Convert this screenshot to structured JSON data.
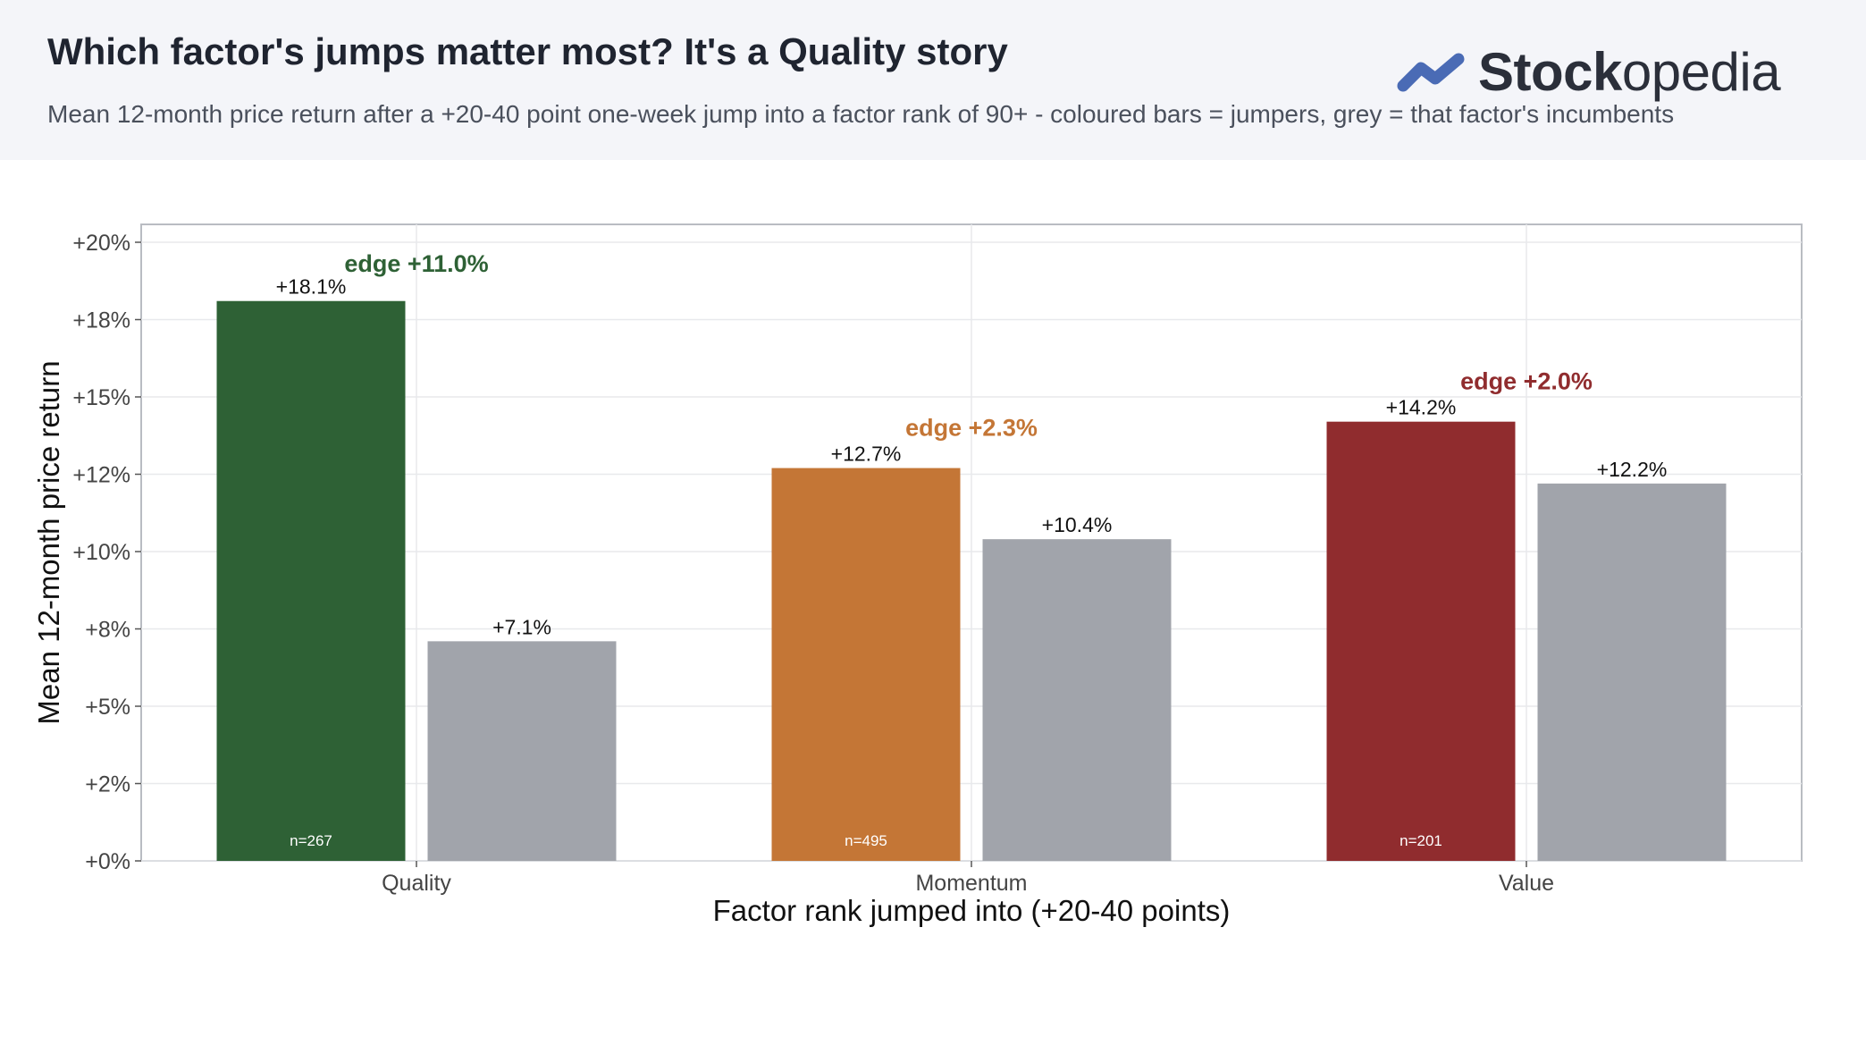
{
  "header": {
    "title": "Which factor's jumps matter most? It's a Quality story",
    "subtitle": "Mean 12-month price return after a +20-40 point one-week jump into a factor rank of 90+ - coloured bars = jumpers, grey = that factor's incumbents",
    "logo_bold": "Stock",
    "logo_light": "opedia",
    "logo_color": "#4a6bb5"
  },
  "chart_data": {
    "type": "bar",
    "title": "",
    "xlabel": "Factor rank jumped into (+20-40 points)",
    "ylabel": "Mean 12-month price return",
    "ylim": [
      0,
      20
    ],
    "yticks": [
      0,
      2.5,
      5,
      7.5,
      10,
      12.5,
      15,
      17.5,
      20
    ],
    "ytick_labels": [
      "+0%",
      "+2%",
      "+5%",
      "+8%",
      "+10%",
      "+12%",
      "+15%",
      "+18%",
      "+20%"
    ],
    "grid": true,
    "categories": [
      "Quality",
      "Momentum",
      "Value"
    ],
    "series": [
      {
        "values": [
          18.1,
          12.7,
          14.2
        ],
        "colors": [
          "#2e6135",
          "#c47636",
          "#902c2e"
        ],
        "labels": [
          "+18.1%",
          "+12.7%",
          "+14.2%"
        ],
        "counts": [
          "n=267",
          "n=495",
          "n=201"
        ]
      },
      {
        "values": [
          7.1,
          10.4,
          12.2
        ],
        "colors": [
          "#a1a4ab",
          "#a1a4ab",
          "#a1a4ab"
        ],
        "labels": [
          "+7.1%",
          "+10.4%",
          "+12.2%"
        ]
      }
    ],
    "annotations": [
      {
        "text": "edge +11.0%",
        "category": "Quality",
        "y": 19.3,
        "color": "#2e6135"
      },
      {
        "text": "edge +2.3%",
        "category": "Momentum",
        "y": 14.0,
        "color": "#c47636"
      },
      {
        "text": "edge +2.0%",
        "category": "Value",
        "y": 15.5,
        "color": "#902c2e"
      }
    ]
  }
}
